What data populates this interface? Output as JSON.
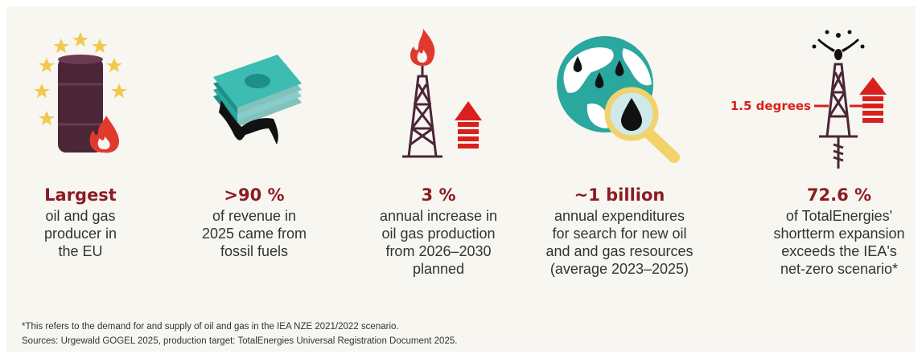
{
  "items": [
    {
      "headline": "Largest",
      "description": [
        "oil and gas",
        "producer in",
        "the EU"
      ]
    },
    {
      "headline": ">90 %",
      "description": [
        "of revenue in",
        "2025 came from",
        "fossil fuels"
      ]
    },
    {
      "headline": "3 %",
      "description": [
        "annual increase in",
        "oil gas production",
        "from 2026–2030",
        "planned"
      ]
    },
    {
      "headline": "~1 billion",
      "description": [
        "annual expenditures",
        "for search for new oil",
        "and and gas resources",
        "(average 2023–2025)"
      ]
    },
    {
      "headline": "72.6 %",
      "description": [
        "of TotalEnergies'",
        "shortterm expansion",
        "exceeds the IEA's",
        "net-zero scenario*"
      ]
    }
  ],
  "annotation": "1.5 degrees",
  "footnote": "*This refers to the demand for and supply of oil and gas in the IEA NZE 2021/2022 scenario.",
  "sources": "Sources: Urgewald GOGEL 2025, production target: TotalEnergies Universal Registration Document 2025."
}
